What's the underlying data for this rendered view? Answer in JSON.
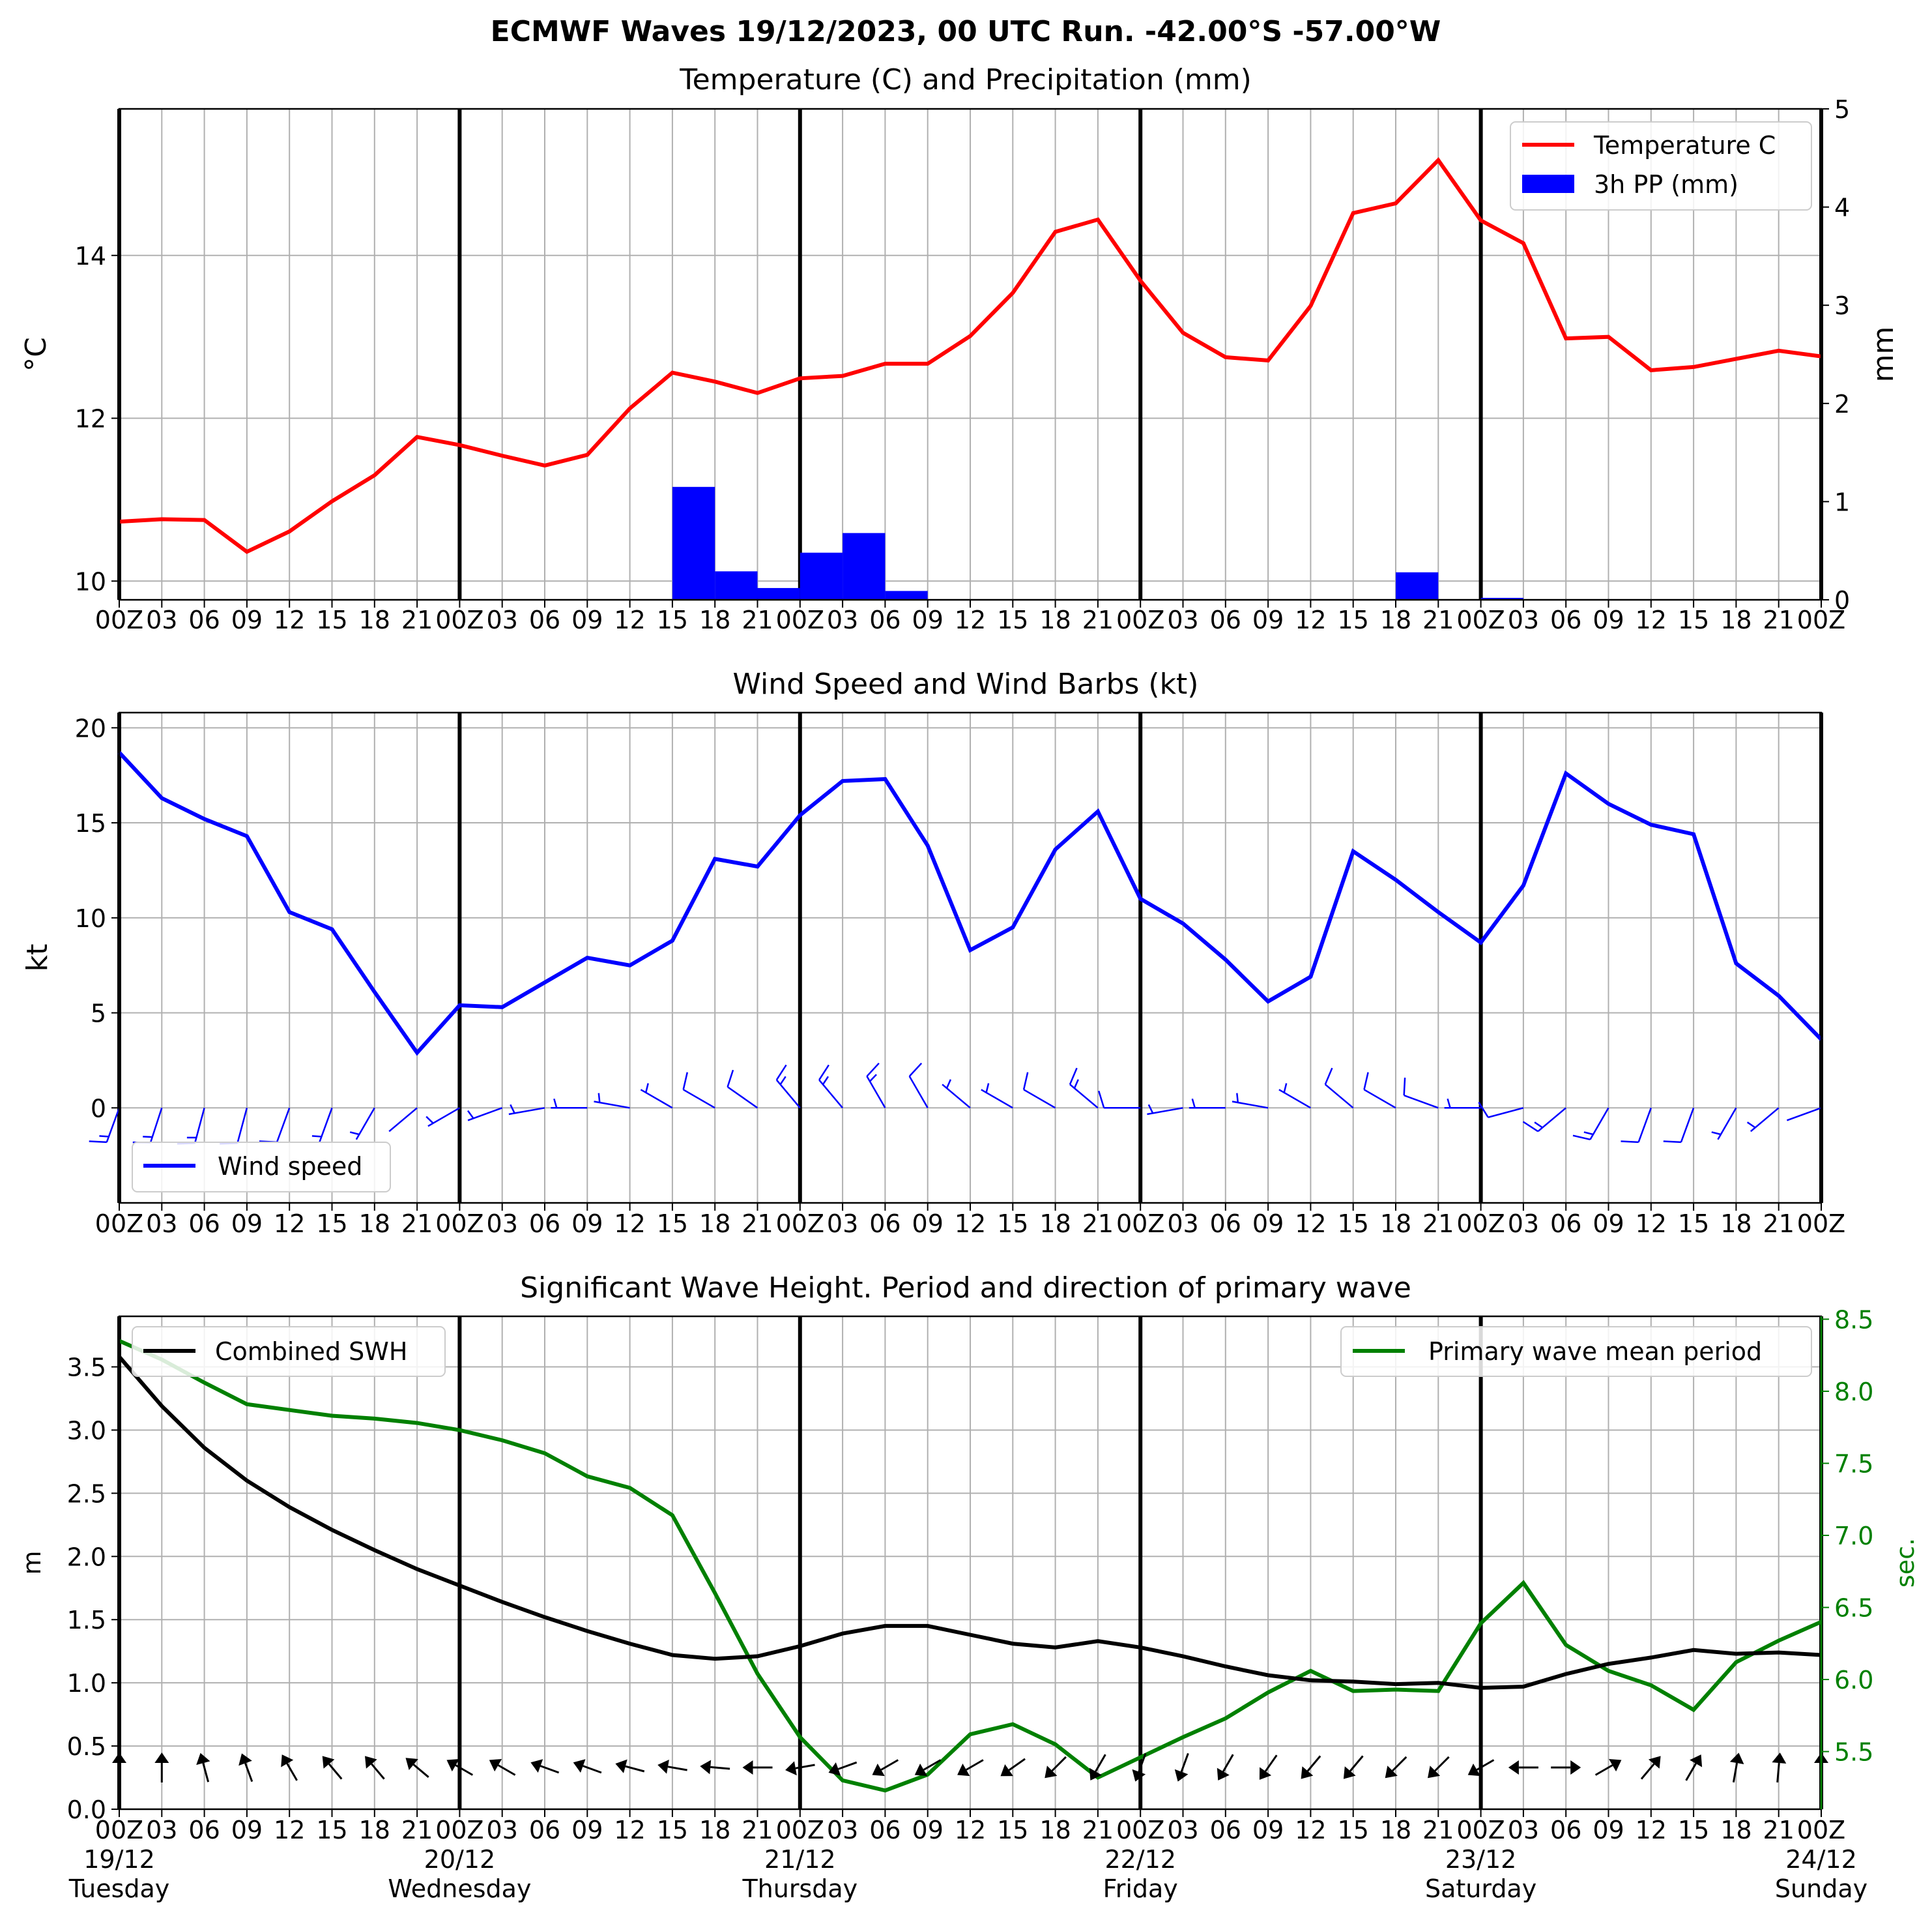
{
  "figure_title": "ECMWF Waves 19/12/2023, 00 UTC Run. -42.00°S -57.00°W",
  "colors": {
    "temperature": "#ff0000",
    "precip": "#0000ff",
    "wind": "#0000ff",
    "swh": "#000000",
    "period": "#008000",
    "grid": "#b0b0b0"
  },
  "hour_labels": [
    "00Z",
    "03",
    "06",
    "09",
    "12",
    "15",
    "18",
    "21",
    "00Z",
    "03",
    "06",
    "09",
    "12",
    "15",
    "18",
    "21",
    "00Z",
    "03",
    "06",
    "09",
    "12",
    "15",
    "18",
    "21",
    "00Z",
    "03",
    "06",
    "09",
    "12",
    "15",
    "18",
    "21",
    "00Z",
    "03",
    "06",
    "09",
    "12",
    "15",
    "18",
    "21",
    "00Z"
  ],
  "day_labels": [
    {
      "date": "19/12",
      "weekday": "Tuesday"
    },
    {
      "date": "20/12",
      "weekday": "Wednesday"
    },
    {
      "date": "21/12",
      "weekday": "Thursday"
    },
    {
      "date": "22/12",
      "weekday": "Friday"
    },
    {
      "date": "23/12",
      "weekday": "Saturday"
    },
    {
      "date": "24/12",
      "weekday": "Sunday"
    }
  ],
  "chart_data": [
    {
      "type": "line",
      "title": "Temperature (C) and Precipitation (mm)",
      "ylabel": "°C",
      "ylabel_right": "mm",
      "ylim": [
        9.77,
        15.8
      ],
      "ylim_right": [
        0,
        5
      ],
      "yticks": [
        10,
        12,
        14
      ],
      "yticks_right": [
        0,
        1,
        2,
        3,
        4,
        5
      ],
      "grid": true,
      "legend": "top-right",
      "series": [
        {
          "name": "Temperature C",
          "type": "line",
          "values": [
            10.73,
            10.76,
            10.75,
            10.36,
            10.61,
            10.98,
            11.3,
            11.77,
            11.67,
            11.54,
            11.42,
            11.55,
            12.12,
            12.56,
            12.45,
            12.31,
            12.49,
            12.52,
            12.67,
            12.67,
            13.01,
            13.54,
            14.29,
            14.44,
            13.69,
            13.05,
            12.75,
            12.71,
            13.38,
            14.52,
            14.64,
            15.17,
            14.43,
            14.15,
            12.98,
            13.0,
            12.59,
            12.63,
            12.73,
            12.83,
            12.76
          ]
        },
        {
          "name": "3h PP (mm)",
          "type": "bar",
          "values": [
            0,
            0,
            0,
            0,
            0,
            0,
            0,
            0,
            0,
            0,
            0,
            0,
            0,
            1.15,
            0.29,
            0.12,
            0.48,
            0.68,
            0.09,
            0,
            0,
            0,
            0,
            0,
            0,
            0,
            0,
            0,
            0,
            0,
            0.28,
            0,
            0.02,
            0,
            0,
            0,
            0,
            0,
            0,
            0,
            0
          ]
        }
      ]
    },
    {
      "type": "line",
      "title": "Wind Speed and Wind Barbs (kt)",
      "ylabel": "kt",
      "ylim": [
        -5,
        20.8
      ],
      "yticks": [
        0,
        5,
        10,
        15,
        20
      ],
      "grid": true,
      "legend": "bottom-left",
      "series": [
        {
          "name": "Wind speed",
          "values": [
            18.7,
            16.3,
            15.2,
            14.3,
            10.3,
            9.4,
            6.1,
            2.9,
            5.4,
            5.3,
            6.6,
            7.9,
            7.5,
            8.8,
            13.1,
            12.7,
            15.4,
            17.2,
            17.3,
            13.8,
            8.3,
            9.5,
            13.6,
            15.6,
            11.0,
            9.7,
            7.8,
            5.6,
            6.9,
            13.5,
            12.0,
            10.3,
            8.7,
            11.7,
            17.6,
            16.0,
            14.9,
            14.4,
            7.6,
            5.9,
            3.6
          ]
        }
      ],
      "barbs_from_deg": [
        200,
        198,
        195,
        195,
        200,
        200,
        210,
        230,
        240,
        250,
        260,
        270,
        280,
        300,
        300,
        305,
        320,
        320,
        330,
        330,
        310,
        300,
        300,
        310,
        270,
        260,
        270,
        280,
        300,
        310,
        300,
        290,
        270,
        255,
        230,
        210,
        200,
        200,
        210,
        230,
        250
      ]
    },
    {
      "type": "line",
      "title": "Significant Wave Height. Period and direction of primary wave",
      "ylabel": "m",
      "ylabel_right": "sec.",
      "ylim": [
        0,
        3.9
      ],
      "ylim_right": [
        5.1,
        8.52
      ],
      "yticks": [
        0.0,
        0.5,
        1.0,
        1.5,
        2.0,
        2.5,
        3.0,
        3.5
      ],
      "yticks_right": [
        5.5,
        6.0,
        6.5,
        7.0,
        7.5,
        8.0,
        8.5
      ],
      "grid": true,
      "series": [
        {
          "name": "Combined SWH",
          "axis": "left",
          "values": [
            3.58,
            3.19,
            2.86,
            2.6,
            2.39,
            2.21,
            2.05,
            1.9,
            1.77,
            1.64,
            1.52,
            1.41,
            1.31,
            1.22,
            1.19,
            1.21,
            1.29,
            1.39,
            1.45,
            1.45,
            1.38,
            1.31,
            1.28,
            1.33,
            1.28,
            1.21,
            1.13,
            1.06,
            1.02,
            1.01,
            0.99,
            1.0,
            0.96,
            0.97,
            1.07,
            1.15,
            1.2,
            1.26,
            1.23,
            1.24,
            1.22
          ]
        },
        {
          "name": "Primary wave mean period",
          "axis": "right",
          "values": [
            8.35,
            8.22,
            8.06,
            7.91,
            7.87,
            7.83,
            7.81,
            7.78,
            7.73,
            7.66,
            7.57,
            7.41,
            7.33,
            7.14,
            6.6,
            6.04,
            5.6,
            5.3,
            5.23,
            5.34,
            5.62,
            5.69,
            5.55,
            5.32,
            5.46,
            5.6,
            5.73,
            5.91,
            6.06,
            5.92,
            5.93,
            5.92,
            6.39,
            6.67,
            6.24,
            6.06,
            5.96,
            5.79,
            6.12,
            6.27,
            6.4
          ]
        }
      ],
      "arrows_to_deg": [
        0,
        0,
        345,
        340,
        330,
        320,
        320,
        310,
        300,
        300,
        290,
        290,
        285,
        280,
        275,
        270,
        260,
        250,
        240,
        240,
        240,
        235,
        225,
        210,
        200,
        200,
        210,
        215,
        220,
        220,
        225,
        225,
        240,
        270,
        90,
        60,
        40,
        30,
        10,
        5,
        0
      ]
    }
  ]
}
